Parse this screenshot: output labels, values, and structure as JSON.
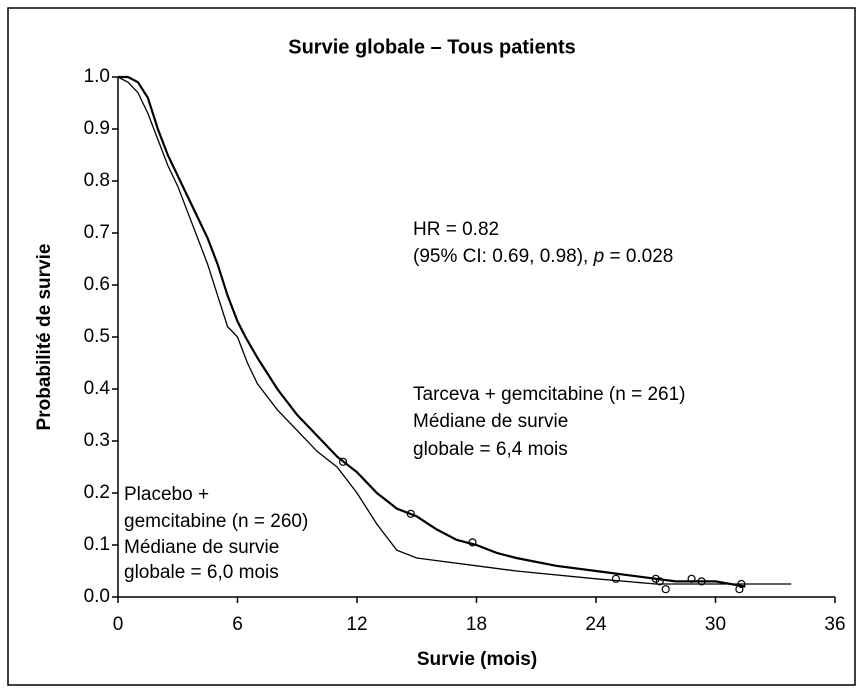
{
  "chart_data": {
    "type": "line",
    "step": true,
    "title": "Survie globale – Tous patients",
    "x_label": "Survie (mois)",
    "y_label": "Probabilité de survie",
    "xlim": [
      0,
      36
    ],
    "ylim": [
      0,
      1
    ],
    "xticks": [
      0,
      6,
      12,
      18,
      24,
      30,
      36
    ],
    "yticks": [
      {
        "value": 0,
        "label": "0.0"
      },
      0.1,
      0.2,
      0.3,
      0.4,
      0.5,
      0.6,
      0.7,
      0.8,
      0.9,
      {
        "value": 1,
        "label": "1.0"
      }
    ],
    "series": [
      {
        "name": "Tarceva + gemcitabine (n = 261)",
        "color": "#000000",
        "line_width": 2.2,
        "x": [
          0,
          0.5,
          1,
          1.5,
          2,
          2.5,
          3,
          3.5,
          4,
          4.5,
          5,
          5.5,
          6,
          6.4,
          7,
          7.5,
          8,
          9,
          10,
          11,
          12,
          13,
          14,
          15,
          16,
          17,
          18,
          19,
          20,
          22,
          24,
          26,
          28,
          30,
          31.5
        ],
        "values": [
          1.0,
          1.0,
          0.99,
          0.96,
          0.9,
          0.85,
          0.81,
          0.77,
          0.73,
          0.69,
          0.64,
          0.58,
          0.53,
          0.5,
          0.46,
          0.43,
          0.4,
          0.35,
          0.31,
          0.27,
          0.24,
          0.2,
          0.17,
          0.155,
          0.13,
          0.11,
          0.1,
          0.085,
          0.075,
          0.06,
          0.05,
          0.04,
          0.03,
          0.03,
          0.02
        ],
        "censored_x": [
          11.3,
          14.7,
          17.8,
          27,
          28.8,
          31.3
        ],
        "censored_values": [
          0.26,
          0.16,
          0.105,
          0.035,
          0.035,
          0.025
        ]
      },
      {
        "name": "Placebo + gemcitabine (n = 260)",
        "color": "#000000",
        "line_width": 1.3,
        "x": [
          0,
          0.5,
          1,
          1.5,
          2,
          2.5,
          3,
          3.5,
          4,
          4.5,
          5,
          5.5,
          6,
          6.5,
          7,
          8,
          9,
          10,
          11,
          12,
          13,
          14,
          15,
          16,
          18,
          20,
          24,
          27,
          30,
          33.8
        ],
        "values": [
          1.0,
          0.99,
          0.97,
          0.93,
          0.88,
          0.83,
          0.79,
          0.74,
          0.69,
          0.64,
          0.58,
          0.52,
          0.5,
          0.45,
          0.41,
          0.36,
          0.32,
          0.28,
          0.25,
          0.2,
          0.14,
          0.09,
          0.075,
          0.07,
          0.06,
          0.05,
          0.035,
          0.025,
          0.025,
          0.025
        ],
        "censored_x": [
          25,
          27.2,
          27.5,
          29.3,
          31.2
        ],
        "censored_values": [
          0.035,
          0.03,
          0.015,
          0.03,
          0.015
        ]
      }
    ],
    "annotations": {
      "hr": [
        "HR = 0.82",
        [
          "(95% CI: 0.69, 0.98), ",
          "p",
          " = 0.028"
        ]
      ],
      "tarceva": [
        "Tarceva + gemcitabine (n = 261)",
        "Médiane de survie",
        "globale = 6,4 mois"
      ],
      "placebo": [
        "Placebo +",
        "gemcitabine (n = 260)",
        "Médiane de survie",
        "globale = 6,0 mois"
      ]
    }
  }
}
